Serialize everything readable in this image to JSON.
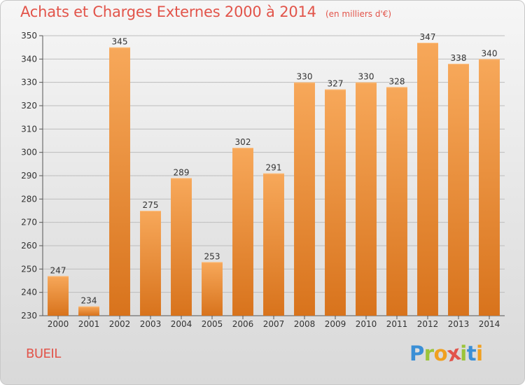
{
  "header": {
    "title": "Achats et Charges Externes 2000 à 2014",
    "unit": "(en milliers d'€)"
  },
  "footer": {
    "commune": "BUEIL",
    "logo_text": "Proxiti",
    "logo_letters": [
      "P",
      "r",
      "o",
      "x",
      "i",
      "t",
      "i"
    ],
    "logo_colors": [
      "#3a8fd6",
      "#9bc43a",
      "#f0a020",
      "#e2544a",
      "#9bc43a",
      "#3a8fd6",
      "#f0a020"
    ]
  },
  "colors": {
    "title": "#e2544a",
    "bar_top": "#f7a85a",
    "bar_bottom": "#d8731c",
    "grid": "#bdbdbd"
  },
  "chart_data": {
    "type": "bar",
    "title": "Achats et Charges Externes 2000 à 2014",
    "subtitle": "(en milliers d'€)",
    "xlabel": "",
    "ylabel": "",
    "categories": [
      "2000",
      "2001",
      "2002",
      "2003",
      "2004",
      "2005",
      "2006",
      "2007",
      "2008",
      "2009",
      "2010",
      "2011",
      "2012",
      "2013",
      "2014"
    ],
    "values": [
      247,
      234,
      345,
      275,
      289,
      253,
      302,
      291,
      330,
      327,
      330,
      328,
      347,
      338,
      340
    ],
    "ylim": [
      230,
      350
    ],
    "yticks": [
      230,
      240,
      250,
      260,
      270,
      280,
      290,
      300,
      310,
      320,
      330,
      340,
      350
    ],
    "grid": true,
    "data_labels": true
  }
}
